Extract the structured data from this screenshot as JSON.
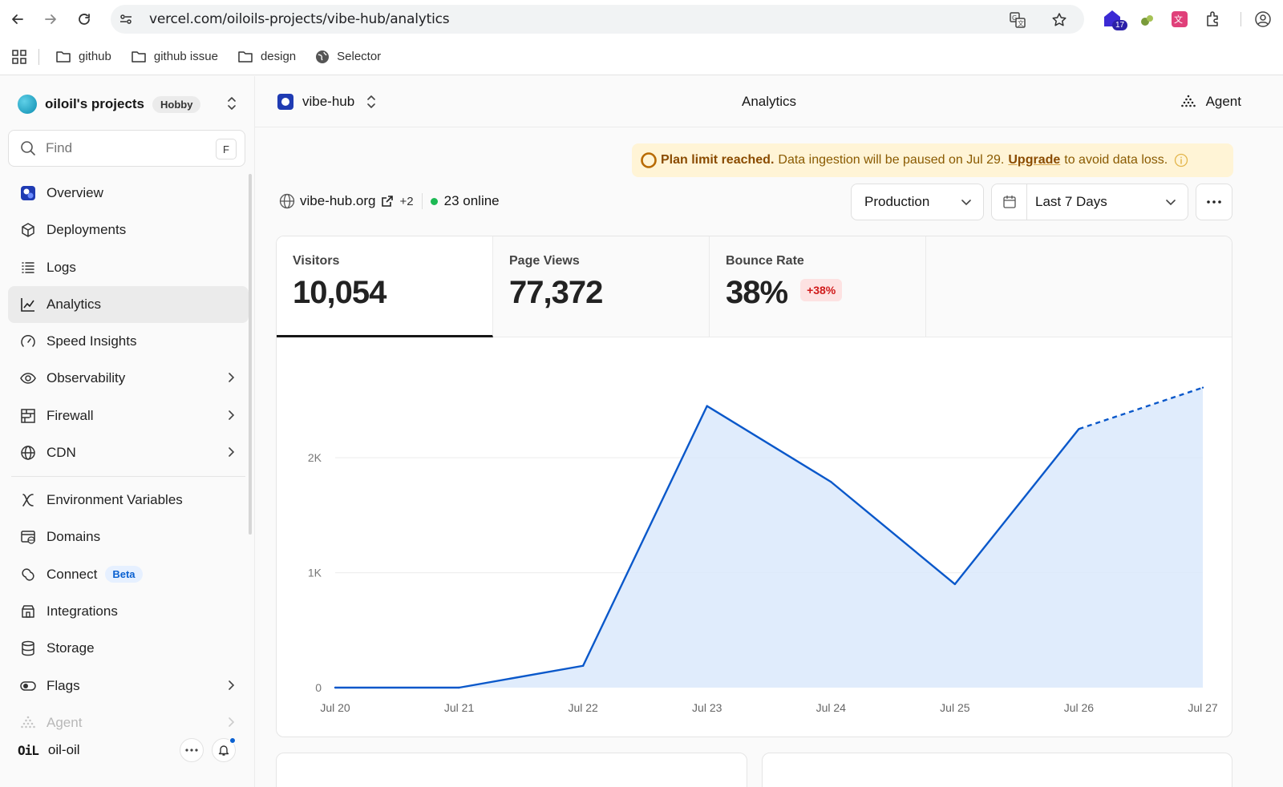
{
  "browser": {
    "url": "vercel.com/oiloils-projects/vibe-hub/analytics",
    "extension_badge": "17",
    "bookmarks": [
      {
        "label": "github",
        "icon": "folder-icon"
      },
      {
        "label": "github issue",
        "icon": "folder-icon"
      },
      {
        "label": "design",
        "icon": "folder-icon"
      },
      {
        "label": "Selector",
        "icon": "globe-icon"
      }
    ]
  },
  "sidebar": {
    "team_name": "oiloil's projects",
    "team_plan": "Hobby",
    "find_placeholder": "Find",
    "find_shortcut": "F",
    "items": [
      {
        "label": "Overview",
        "icon": "overview-icon"
      },
      {
        "label": "Deployments",
        "icon": "cube-icon"
      },
      {
        "label": "Logs",
        "icon": "list-icon"
      },
      {
        "label": "Analytics",
        "icon": "chart-icon",
        "active": true
      },
      {
        "label": "Speed Insights",
        "icon": "gauge-icon"
      },
      {
        "label": "Observability",
        "icon": "eye-icon",
        "chevron": true
      },
      {
        "label": "Firewall",
        "icon": "firewall-icon",
        "chevron": true
      },
      {
        "label": "CDN",
        "icon": "globe-icon",
        "chevron": true
      },
      {
        "label": "Environment Variables",
        "icon": "variable-icon"
      },
      {
        "label": "Domains",
        "icon": "domains-icon"
      },
      {
        "label": "Connect",
        "icon": "connect-icon",
        "badge": "Beta"
      },
      {
        "label": "Integrations",
        "icon": "integrations-icon"
      },
      {
        "label": "Storage",
        "icon": "database-icon"
      },
      {
        "label": "Flags",
        "icon": "toggle-icon",
        "chevron": true
      },
      {
        "label": "Agent",
        "icon": "agent-icon",
        "chevron": true
      }
    ],
    "user_logo": "OiL",
    "user_name": "oil-oil"
  },
  "header": {
    "project_name": "vibe-hub",
    "title": "Analytics",
    "agent_label": "Agent"
  },
  "banner": {
    "strong": "Plan limit reached.",
    "text": "Data ingestion will be paused on Jul 29.",
    "link": "Upgrade",
    "tail": "to avoid data loss."
  },
  "site": {
    "domain": "vibe-hub.org",
    "extra": "+2",
    "online": "23 online"
  },
  "filters": {
    "environment": "Production",
    "range": "Last 7 Days"
  },
  "metrics": [
    {
      "label": "Visitors",
      "value": "10,054"
    },
    {
      "label": "Page Views",
      "value": "77,372"
    },
    {
      "label": "Bounce Rate",
      "value": "38%",
      "change": "+38%"
    }
  ],
  "chart_data": {
    "type": "area",
    "categories": [
      "Jul 20",
      "Jul 21",
      "Jul 22",
      "Jul 23",
      "Jul 24",
      "Jul 25",
      "Jul 26",
      "Jul 27"
    ],
    "values": [
      0,
      0,
      190,
      2450,
      1790,
      900,
      2250,
      2610
    ],
    "projected_from_index": 6,
    "y_ticks": [
      "0",
      "1K",
      "2K"
    ],
    "ylim": [
      0,
      2740
    ],
    "grid": true,
    "line_color": "#0a58ca",
    "fill_color": "#dbe9fb"
  }
}
